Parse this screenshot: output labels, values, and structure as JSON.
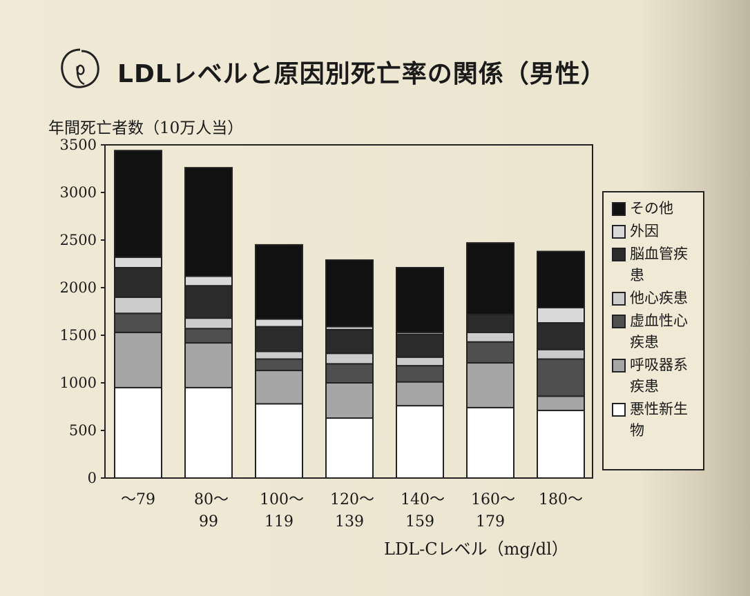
{
  "chart_data": {
    "type": "bar",
    "stacked": true,
    "title": "LDLレベルと原因別死亡率の関係（男性）",
    "ylabel": "年間死亡者数（10万人当）",
    "xlabel": "LDL-Cレベル（mg/dl）",
    "ylim": [
      0,
      3500
    ],
    "yticks": [
      0,
      500,
      1000,
      1500,
      2000,
      2500,
      3000,
      3500
    ],
    "categories": [
      "～79",
      "80～99",
      "100～119",
      "120～139",
      "140～159",
      "160～179",
      "180～"
    ],
    "category_lines": [
      [
        "～79"
      ],
      [
        "80～",
        "99"
      ],
      [
        "100～",
        "119"
      ],
      [
        "120～",
        "139"
      ],
      [
        "140～",
        "159"
      ],
      [
        "160～",
        "179"
      ],
      [
        "180～"
      ]
    ],
    "legend_position": "right",
    "grid": false,
    "series": [
      {
        "name": "悪性新生物",
        "color": "#ffffff",
        "values": [
          950,
          950,
          780,
          630,
          760,
          740,
          710
        ]
      },
      {
        "name": "呼吸器系疾患",
        "color": "#a6a6a6",
        "values": [
          580,
          470,
          350,
          370,
          250,
          470,
          150
        ]
      },
      {
        "name": "虚血性心疾患",
        "color": "#4f4f4f",
        "values": [
          200,
          150,
          120,
          200,
          170,
          220,
          390
        ]
      },
      {
        "name": "他心疾患",
        "color": "#cccccc",
        "values": [
          170,
          110,
          80,
          110,
          90,
          100,
          100
        ]
      },
      {
        "name": "脳血管疾患",
        "color": "#2b2b2b",
        "values": [
          310,
          340,
          260,
          250,
          240,
          190,
          280
        ]
      },
      {
        "name": "外因",
        "color": "#d9d9d9",
        "values": [
          110,
          100,
          80,
          30,
          20,
          0,
          160
        ]
      },
      {
        "name": "その他",
        "color": "#111111",
        "values": [
          1120,
          1140,
          780,
          700,
          680,
          750,
          590
        ]
      }
    ],
    "legend_order": [
      "その他",
      "外因",
      "脳血管疾患",
      "他心疾患",
      "虚血性心疾患",
      "呼吸器系疾患",
      "悪性新生物"
    ],
    "legend_labels": {
      "その他": "その他",
      "外因": "外因",
      "脳血管疾患": "脳血管疾患",
      "他心疾患": "他心疾患",
      "虚血性心疾患": "虚血性心疾患",
      "呼吸器系疾患": "呼吸器系疾患",
      "悪性新生物": "悪性新生物"
    }
  }
}
